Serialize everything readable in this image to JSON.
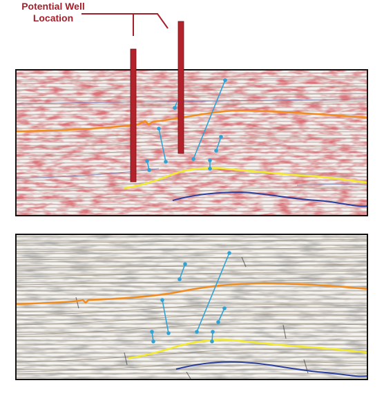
{
  "annotation": {
    "line1": "Potential Well",
    "line2": "Location"
  },
  "colors": {
    "label_red": "#a31f2a",
    "well_red": "#b3232c",
    "horizon_orange": "#f28c1e",
    "horizon_yellow": "#f2ea2a",
    "horizon_blue": "#2b3f9e",
    "fault_cyan": "#2fa3d6",
    "panel_border": "#111111"
  },
  "panels": [
    {
      "name": "seismic-amplitude-panel",
      "style": "red-amplitude"
    },
    {
      "name": "seismic-grayscale-panel",
      "style": "grayscale"
    }
  ]
}
